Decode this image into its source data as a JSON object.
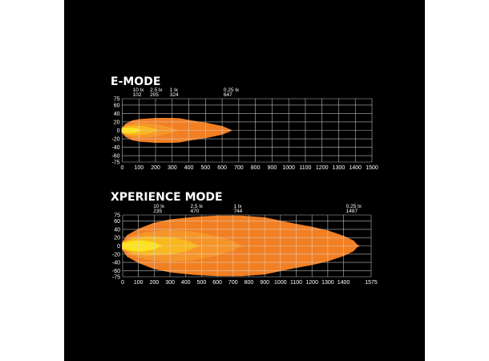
{
  "chart_data": [
    {
      "type": "area",
      "title": "E-MODE",
      "xlim": [
        0,
        1500
      ],
      "ylim": [
        -75,
        75
      ],
      "x_ticks": [
        0,
        100,
        200,
        300,
        400,
        500,
        600,
        700,
        800,
        900,
        1000,
        1100,
        1200,
        1300,
        1400,
        1500
      ],
      "y_ticks": [
        75,
        60,
        40,
        20,
        0,
        -20,
        -40,
        -60,
        -75
      ],
      "grid": true,
      "annotations": [
        {
          "lux": "10 lx",
          "distance": "102"
        },
        {
          "lux": "2.5 lx",
          "distance": "205"
        },
        {
          "lux": "1 lx",
          "distance": "324"
        },
        {
          "lux": "0.25 lx",
          "distance": "647"
        }
      ],
      "series": [
        {
          "lux": "0.25 lx",
          "color": "#f27f22",
          "reach": 647,
          "profile": [
            [
              0,
              5
            ],
            [
              20,
              14
            ],
            [
              60,
              22
            ],
            [
              100,
              25
            ],
            [
              200,
              28
            ],
            [
              300,
              28
            ],
            [
              350,
              27
            ],
            [
              400,
              23
            ],
            [
              500,
              17
            ],
            [
              600,
              9
            ],
            [
              647,
              1
            ]
          ]
        },
        {
          "lux": "1 lx",
          "color": "#f6962a",
          "reach": 324,
          "profile": [
            [
              0,
              5
            ],
            [
              30,
              12
            ],
            [
              80,
              16
            ],
            [
              150,
              16
            ],
            [
              220,
              12
            ],
            [
              280,
              6
            ],
            [
              324,
              1
            ]
          ]
        },
        {
          "lux": "2.5 lx",
          "color": "#f9b81f",
          "reach": 205,
          "profile": [
            [
              0,
              4
            ],
            [
              30,
              9
            ],
            [
              80,
              10
            ],
            [
              140,
              8
            ],
            [
              180,
              4
            ],
            [
              205,
              1
            ]
          ]
        },
        {
          "lux": "10 lx",
          "color": "#fde31c",
          "reach": 102,
          "profile": [
            [
              0,
              3
            ],
            [
              20,
              5
            ],
            [
              60,
              5
            ],
            [
              90,
              3
            ],
            [
              102,
              1
            ]
          ]
        }
      ]
    },
    {
      "type": "area",
      "title": "XPERIENCE MODE",
      "xlim": [
        0,
        1575
      ],
      "ylim": [
        -75,
        75
      ],
      "x_ticks": [
        0,
        100,
        200,
        300,
        400,
        500,
        600,
        700,
        800,
        900,
        1000,
        1100,
        1200,
        1300,
        1400,
        1575
      ],
      "y_ticks": [
        75,
        60,
        40,
        20,
        0,
        -20,
        -40,
        -60,
        -75
      ],
      "grid": true,
      "annotations": [
        {
          "lux": "10 lx",
          "distance": "235"
        },
        {
          "lux": "2.5 lx",
          "distance": "470"
        },
        {
          "lux": "1 lx",
          "distance": "744"
        },
        {
          "lux": "0.25 lx",
          "distance": "1487"
        }
      ],
      "series": [
        {
          "lux": "0.25 lx",
          "color": "#f27f22",
          "reach": 1487,
          "profile": [
            [
              0,
              8
            ],
            [
              30,
              25
            ],
            [
              100,
              40
            ],
            [
              200,
              55
            ],
            [
              300,
              63
            ],
            [
              450,
              69
            ],
            [
              600,
              72
            ],
            [
              750,
              72
            ],
            [
              900,
              68
            ],
            [
              1000,
              60
            ],
            [
              1100,
              52
            ],
            [
              1200,
              45
            ],
            [
              1300,
              36
            ],
            [
              1400,
              23
            ],
            [
              1460,
              12
            ],
            [
              1487,
              1
            ]
          ]
        },
        {
          "lux": "1 lx",
          "color": "#f6962a",
          "reach": 744,
          "profile": [
            [
              0,
              8
            ],
            [
              60,
              22
            ],
            [
              150,
              32
            ],
            [
              300,
              37
            ],
            [
              450,
              33
            ],
            [
              600,
              22
            ],
            [
              700,
              10
            ],
            [
              744,
              1
            ]
          ]
        },
        {
          "lux": "2.5 lx",
          "color": "#f9b81f",
          "reach": 470,
          "profile": [
            [
              0,
              7
            ],
            [
              60,
              16
            ],
            [
              150,
              22
            ],
            [
              300,
              20
            ],
            [
              400,
              12
            ],
            [
              470,
              1
            ]
          ]
        },
        {
          "lux": "10 lx",
          "color": "#fde31c",
          "reach": 235,
          "profile": [
            [
              0,
              5
            ],
            [
              50,
              10
            ],
            [
              120,
              12
            ],
            [
              200,
              7
            ],
            [
              235,
              1
            ]
          ]
        }
      ]
    }
  ]
}
